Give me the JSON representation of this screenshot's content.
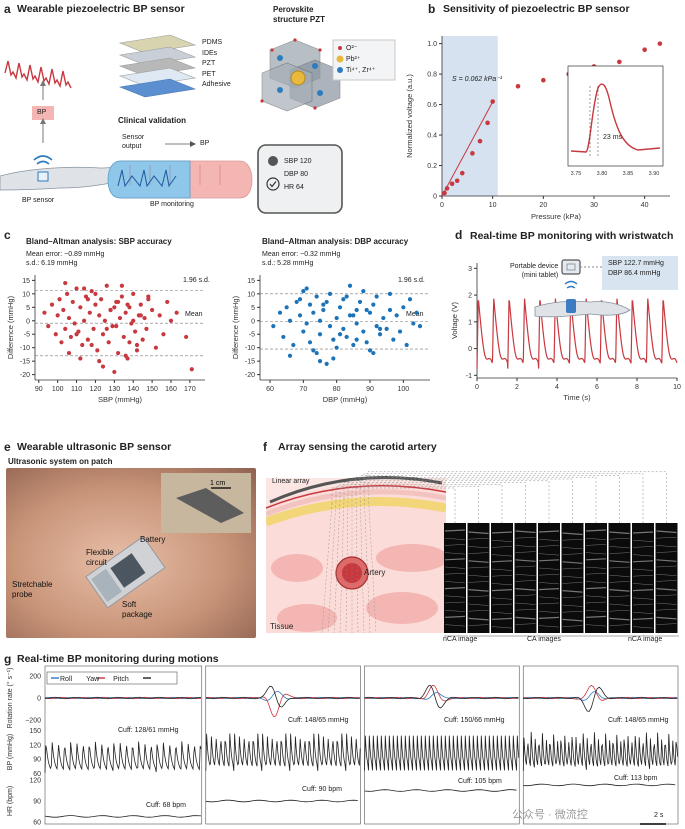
{
  "panel_a": {
    "letter": "a",
    "title": "Wearable piezoelectric BP sensor",
    "layers": [
      "PDMS",
      "IDEs",
      "PZT",
      "PET",
      "Adhesive"
    ],
    "bp_box": "BP",
    "sensor_label": "BP sensor",
    "perovskite_title_1": "Perovskite",
    "perovskite_title_2": "structure PZT",
    "legend": [
      "O²⁻",
      "Pb²⁺",
      "Ti⁴⁺, Zr⁴⁺"
    ],
    "clinical": "Clinical validation",
    "sensor_output_1": "Sensor",
    "sensor_output_2": "output",
    "arrow_bp": "BP",
    "bp_monitoring": "BP monitoring",
    "readout": [
      "SBP 120",
      "DBP 80",
      "HR 64"
    ],
    "colors": {
      "accent": "#c8383f",
      "blue": "#2b7cc0",
      "box": "#f4b6b2"
    }
  },
  "panel_b": {
    "letter": "b",
    "title": "Sensitivity of piezoelectric BP sensor",
    "sensitivity": "S = 0.062 kPa⁻¹",
    "inset_label": "23 ms",
    "chart_data": {
      "type": "scatter",
      "xlabel": "Pressure (kPa)",
      "ylabel": "Normalized voltage (a.u.)",
      "xlim": [
        0,
        45
      ],
      "ylim": [
        0,
        1.05
      ],
      "xticks": [
        "0",
        "10",
        "20",
        "30",
        "40"
      ],
      "yticks": [
        "0",
        "0.2",
        "0.4",
        "0.6",
        "0.8",
        "1.0"
      ],
      "x": [
        0.5,
        1,
        2,
        3,
        4,
        6,
        7.5,
        9,
        10,
        15,
        20,
        25,
        30,
        35,
        40,
        43
      ],
      "y": [
        0.02,
        0.05,
        0.08,
        0.1,
        0.15,
        0.28,
        0.36,
        0.48,
        0.62,
        0.72,
        0.76,
        0.8,
        0.85,
        0.88,
        0.96,
        1.0
      ],
      "fit_x": [
        0,
        10.2
      ],
      "fit_y": [
        0.0,
        0.63
      ],
      "shaded_range": [
        0,
        11
      ],
      "inset": {
        "xticks": [
          "3.75",
          "3.80",
          "3.85",
          "3.90"
        ]
      }
    }
  },
  "panel_c": {
    "letter": "c",
    "left": {
      "title": "Bland–Altman analysis: SBP accuracy",
      "stat1": "Mean error: −0.89 mmHg",
      "stat2": "s.d.: 6.19 mmHg",
      "sd_label": "1.96 s.d.",
      "mean_label": "Mean",
      "chart_data": {
        "type": "scatter",
        "xlabel": "SBP (mmHg)",
        "ylabel": "Difference (mmHg)",
        "xlim": [
          88,
          178
        ],
        "ylim": [
          -22,
          17
        ],
        "xticks": [
          "90",
          "100",
          "110",
          "120",
          "130",
          "140",
          "150",
          "160",
          "170"
        ],
        "yticks": [
          "-20",
          "-15",
          "-10",
          "-5",
          "0",
          "5",
          "10",
          "15"
        ],
        "mean": -0.89,
        "upper": 11.2,
        "lower": -13.0,
        "x": [
          93,
          95,
          97,
          99,
          100,
          101,
          102,
          103,
          104,
          105,
          106,
          107,
          108,
          109,
          110,
          111,
          112,
          113,
          114,
          115,
          116,
          117,
          118,
          119,
          120,
          121,
          122,
          123,
          124,
          125,
          126,
          127,
          128,
          129,
          130,
          131,
          132,
          133,
          134,
          135,
          136,
          137,
          138,
          139,
          140,
          141,
          142,
          143,
          144,
          145,
          146,
          147,
          148,
          150,
          152,
          154,
          156,
          158,
          160,
          163,
          168,
          171,
          112,
          118,
          124,
          130,
          136,
          142,
          148,
          106,
          114,
          122,
          128,
          134,
          140,
          120,
          126,
          132,
          138,
          144,
          110,
          116,
          104,
          131,
          137
        ],
        "y": [
          3,
          -2,
          6,
          -5,
          2,
          8,
          -8,
          4,
          -3,
          10,
          1,
          -6,
          7,
          -1,
          12,
          -4,
          5,
          -9,
          0,
          9,
          -7,
          3,
          11,
          -3,
          6,
          -11,
          2,
          8,
          -5,
          0,
          13,
          -8,
          4,
          -2,
          -19,
          7,
          -12,
          1,
          9,
          -6,
          3,
          -14,
          5,
          -1,
          10,
          -4,
          -9,
          2,
          6,
          -7,
          1,
          -3,
          8,
          4,
          -10,
          2,
          -5,
          7,
          0,
          3,
          -6,
          -18,
          -14,
          -9,
          -17,
          5,
          -13,
          -11,
          9,
          -12,
          12,
          -15,
          4,
          13,
          0,
          10,
          -3,
          7,
          -8,
          2,
          -5,
          8,
          14,
          -2,
          6
        ]
      }
    },
    "right": {
      "title": "Bland–Altman analysis: DBP accuracy",
      "stat1": "Mean error: −0.32 mmHg",
      "stat2": "s.d.: 5.28 mmHg",
      "sd_label": "1.96 s.d.",
      "mean_label": "Mean",
      "chart_data": {
        "type": "scatter",
        "xlabel": "DBP (mmHg)",
        "ylabel": "Difference (mmHg)",
        "xlim": [
          57,
          108
        ],
        "ylim": [
          -22,
          17
        ],
        "xticks": [
          "60",
          "70",
          "80",
          "90",
          "100"
        ],
        "yticks": [
          "-20",
          "-15",
          "-10",
          "-5",
          "0",
          "5",
          "10",
          "15"
        ],
        "mean": -0.32,
        "upper": 10.0,
        "lower": -10.5,
        "x": [
          61,
          63,
          64,
          65,
          66,
          67,
          68,
          69,
          70,
          70,
          71,
          72,
          72,
          73,
          74,
          74,
          75,
          75,
          76,
          77,
          77,
          78,
          78,
          79,
          80,
          80,
          81,
          82,
          82,
          83,
          84,
          84,
          85,
          86,
          86,
          87,
          88,
          88,
          89,
          90,
          90,
          91,
          92,
          92,
          93,
          94,
          95,
          96,
          97,
          98,
          99,
          100,
          101,
          102,
          103,
          104,
          105,
          66,
          69,
          73,
          76,
          79,
          83,
          86,
          89,
          93,
          96,
          71,
          75,
          81,
          85,
          91
        ],
        "y": [
          -2,
          3,
          -6,
          5,
          0,
          -9,
          7,
          2,
          -4,
          11,
          -1,
          6,
          -8,
          3,
          -12,
          9,
          0,
          -5,
          4,
          -16,
          7,
          -2,
          10,
          -7,
          1,
          -10,
          5,
          -3,
          8,
          -6,
          2,
          13,
          -9,
          4,
          -1,
          7,
          -4,
          11,
          -8,
          3,
          -11,
          6,
          -2,
          9,
          -5,
          1,
          -3,
          4,
          -7,
          2,
          -4,
          5,
          -9,
          8,
          -1,
          3,
          -2,
          -13,
          8,
          -11,
          6,
          -14,
          9,
          -7,
          4,
          -3,
          10,
          12,
          -15,
          -5,
          2,
          -12
        ]
      }
    }
  },
  "panel_d": {
    "letter": "d",
    "title": "Real-time BP monitoring with wristwatch",
    "device_1": "Portable device",
    "device_2": "(mini tablet)",
    "sbp": "SBP 122.7 mmHg",
    "dbp": "DBP 86.4 mmHg",
    "chart_data": {
      "type": "line",
      "xlabel": "Time (s)",
      "ylabel": "Voltage (V)",
      "xlim": [
        0,
        10
      ],
      "ylim": [
        -1.1,
        3.2
      ],
      "xticks": [
        "0",
        "2",
        "4",
        "6",
        "8",
        "10"
      ],
      "yticks": [
        "-1",
        "0",
        "1",
        "2",
        "3"
      ],
      "beat_period_s": 0.77,
      "peak_v": 1.85,
      "trough_v": -0.75
    }
  },
  "panel_e": {
    "letter": "e",
    "title": "Wearable ultrasonic BP sensor",
    "subtitle": "Ultrasonic system on patch",
    "scale": "1 cm",
    "labels": [
      "Battery",
      "Flexible circuit",
      "Stretchable probe",
      "Soft package"
    ]
  },
  "panel_f": {
    "letter": "f",
    "title": "Array sensing the carotid artery",
    "linear_array": "Linear array",
    "artery": "Artery",
    "tissue": "Tissue",
    "img_left": "nCA image",
    "img_mid": "CA images",
    "img_right": "nCA image"
  },
  "panel_g": {
    "letter": "g",
    "title": "Real-time BP monitoring during motions",
    "legend": [
      "Roll",
      "Yaw",
      "Pitch"
    ],
    "legend_colors": [
      "#2b7cc0",
      "#c8383f",
      "#222222"
    ],
    "ylabels": [
      "Rotation rate (° s⁻¹)",
      "BP (mmHg)",
      "HR (bpm)"
    ],
    "rot_ticks": [
      "200",
      "0",
      "−200"
    ],
    "bp_ticks": [
      "150",
      "120",
      "90",
      "60"
    ],
    "hr_ticks": [
      "120",
      "90",
      "60"
    ],
    "cuff_bp": [
      "Cuff: 128/61 mmHg",
      "Cuff: 148/65 mmHg",
      "Cuff: 150/66 mmHg",
      "Cuff: 148/65 mmHg"
    ],
    "cuff_hr": [
      "Cuff: 68 bpm",
      "Cuff: 90 bpm",
      "Cuff: 105 bpm",
      "Cuff: 113 bpm"
    ],
    "scale": "2 s",
    "chart_data": {
      "type": "line",
      "segments": 4,
      "hr_levels": [
        68,
        90,
        105,
        113
      ],
      "bp_ranges": [
        [
          61,
          128
        ],
        [
          65,
          148
        ],
        [
          66,
          150
        ],
        [
          65,
          148
        ]
      ]
    }
  },
  "watermark": "公众号 · 微流控"
}
